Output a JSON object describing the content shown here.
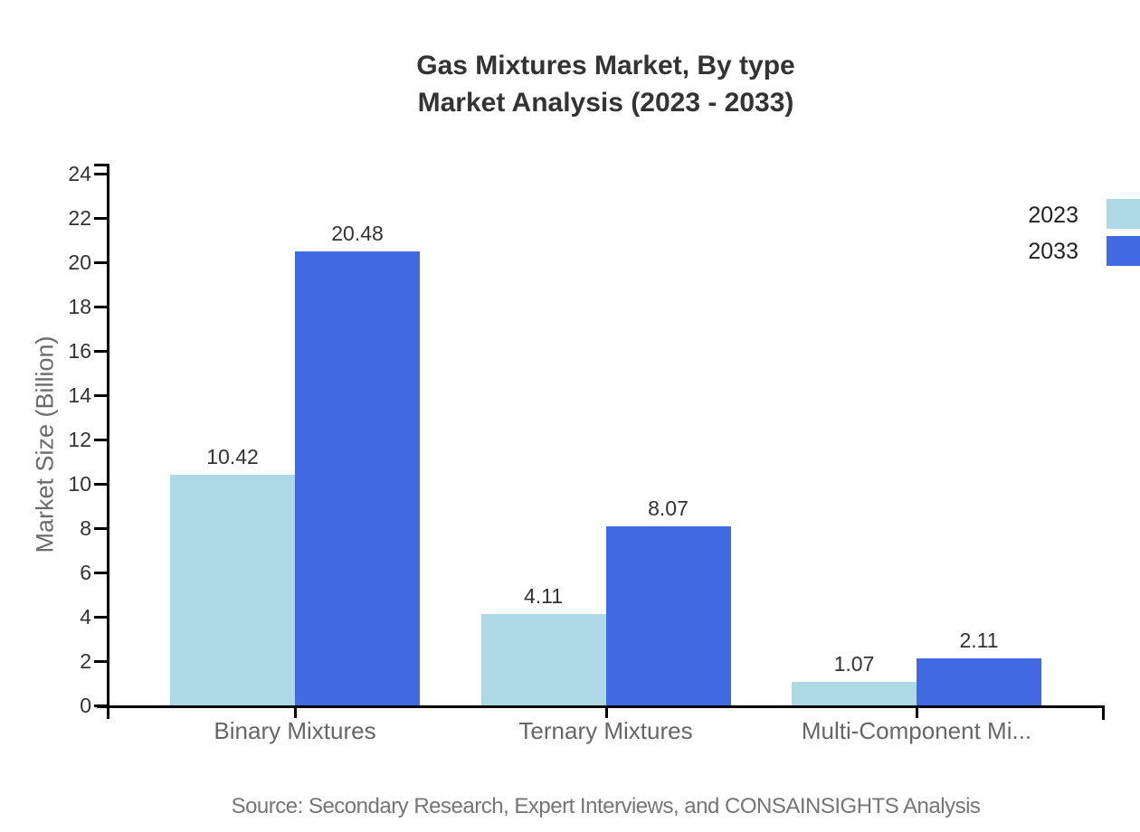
{
  "title": {
    "line1": "Gas Mixtures Market, By type",
    "line2": "Market Analysis (2023 - 2033)"
  },
  "source": "Source: Secondary Research, Expert Interviews, and CONSAINSIGHTS Analysis",
  "legend": {
    "items": [
      {
        "label": "2023",
        "color": "#add8e6"
      },
      {
        "label": "2033",
        "color": "#4169e1"
      }
    ]
  },
  "colors": {
    "series_2023": "#add8e6",
    "series_2033": "#4169e1",
    "axis": "#000000",
    "title_text": "#333333",
    "tick_text": "#333333",
    "category_text": "#666666",
    "source_text": "#757575"
  },
  "chart_data": {
    "type": "bar",
    "title": "Gas Mixtures Market, By type\nMarket Analysis (2023 - 2033)",
    "categories": [
      "Binary Mixtures",
      "Ternary Mixtures",
      "Multi-Component Mi..."
    ],
    "series": [
      {
        "name": "2023",
        "color": "#add8e6",
        "values": [
          10.42,
          4.11,
          1.07
        ]
      },
      {
        "name": "2033",
        "color": "#4169e1",
        "values": [
          20.48,
          8.07,
          2.11
        ]
      }
    ],
    "value_labels": [
      "10.42",
      "20.48",
      "4.11",
      "8.07",
      "1.07",
      "2.11"
    ],
    "xlabel": "",
    "ylabel": "Market Size (Billion)",
    "ylim": [
      0,
      24
    ],
    "ytick_step": 2,
    "grid": false,
    "legend_position": "top-right"
  }
}
